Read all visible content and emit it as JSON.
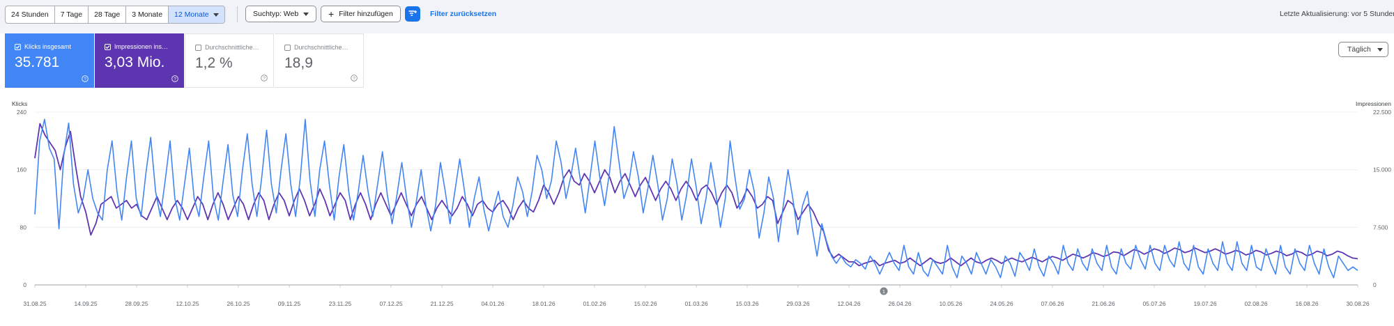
{
  "toolbar": {
    "ranges": [
      "24 Stunden",
      "7 Tage",
      "28 Tage",
      "3 Monate",
      "12 Monate"
    ],
    "active_range_index": 4,
    "search_type": "Suchtyp: Web",
    "add_filter": "Filter hinzufügen",
    "filter_icon": "filter-plus-icon",
    "reset_filters": "Filter zurücksetzen",
    "last_update": "Letzte Aktualisierung: vor 5 Stunden"
  },
  "metrics": [
    {
      "label": "Klicks insgesamt",
      "value": "35.781",
      "checked": true,
      "color": "#4285f4"
    },
    {
      "label": "Impressionen ins…",
      "value": "3,03 Mio.",
      "checked": true,
      "color": "#5e35b1"
    },
    {
      "label": "Durchschnittliche…",
      "value": "1,2 %",
      "checked": false
    },
    {
      "label": "Durchschnittliche…",
      "value": "18,9",
      "checked": false
    }
  ],
  "granularity": "Täglich",
  "annotation_marker": "1",
  "colors": {
    "clicks": "#4285f4",
    "impressions": "#5e35b1",
    "accent": "#1a73e8"
  },
  "chart_data": {
    "type": "line",
    "ylabel_left": "Klicks",
    "ylabel_right": "Impressionen",
    "y_left_ticks": [
      "0",
      "80",
      "160",
      "240"
    ],
    "y_right_ticks": [
      "0",
      "7.500",
      "15.000",
      "22.500"
    ],
    "ylim_left": [
      0,
      240
    ],
    "ylim_right": [
      0,
      22500
    ],
    "x_tick_labels": [
      "31.08.25",
      "14.09.25",
      "28.09.25",
      "12.10.25",
      "26.10.25",
      "09.11.25",
      "23.11.25",
      "07.12.25",
      "21.12.25",
      "04.01.26",
      "18.01.26",
      "01.02.26",
      "15.02.26",
      "01.03.26",
      "15.03.26",
      "29.03.26",
      "12.04.26",
      "26.04.26",
      "10.05.26",
      "24.05.26",
      "07.06.26",
      "21.06.26",
      "05.07.26",
      "19.07.26",
      "02.08.26",
      "16.08.26",
      "30.08.26"
    ],
    "series": [
      {
        "name": "Klicks",
        "axis": "left",
        "values": [
          98,
          200,
          230,
          190,
          175,
          78,
          180,
          225,
          140,
          100,
          120,
          160,
          120,
          100,
          90,
          160,
          200,
          130,
          90,
          150,
          200,
          120,
          95,
          155,
          205,
          130,
          95,
          145,
          200,
          120,
          90,
          140,
          190,
          120,
          95,
          150,
          200,
          120,
          90,
          145,
          195,
          125,
          95,
          160,
          210,
          140,
          95,
          150,
          215,
          140,
          100,
          160,
          210,
          140,
          95,
          150,
          230,
          145,
          95,
          160,
          200,
          140,
          90,
          150,
          195,
          130,
          90,
          130,
          180,
          130,
          95,
          140,
          185,
          125,
          85,
          125,
          170,
          120,
          80,
          115,
          160,
          110,
          75,
          110,
          170,
          130,
          85,
          130,
          175,
          130,
          80,
          120,
          150,
          105,
          75,
          105,
          130,
          95,
          80,
          110,
          150,
          130,
          95,
          130,
          180,
          160,
          120,
          145,
          200,
          170,
          120,
          150,
          190,
          145,
          100,
          150,
          200,
          150,
          110,
          155,
          220,
          170,
          120,
          140,
          185,
          150,
          100,
          135,
          180,
          140,
          90,
          120,
          175,
          140,
          90,
          125,
          175,
          135,
          85,
          120,
          170,
          130,
          80,
          120,
          200,
          150,
          105,
          120,
          160,
          130,
          65,
          100,
          150,
          120,
          60,
          110,
          160,
          120,
          70,
          110,
          130,
          80,
          40,
          85,
          60,
          40,
          30,
          40,
          30,
          25,
          35,
          30,
          22,
          40,
          30,
          15,
          30,
          45,
          30,
          20,
          55,
          25,
          15,
          45,
          20,
          12,
          35,
          25,
          15,
          55,
          25,
          10,
          40,
          30,
          15,
          45,
          30,
          15,
          35,
          25,
          10,
          40,
          30,
          12,
          45,
          35,
          20,
          50,
          25,
          12,
          40,
          30,
          15,
          55,
          30,
          20,
          50,
          30,
          20,
          50,
          30,
          20,
          55,
          25,
          15,
          50,
          30,
          22,
          55,
          35,
          22,
          55,
          30,
          20,
          55,
          35,
          25,
          60,
          30,
          20,
          55,
          25,
          15,
          50,
          30,
          20,
          60,
          30,
          20,
          60,
          30,
          20,
          55,
          25,
          20,
          50,
          30,
          15,
          55,
          25,
          15,
          50,
          30,
          20,
          55,
          30,
          15,
          50,
          25,
          10,
          40,
          30,
          20,
          25,
          20
        ]
      },
      {
        "name": "Impressionen",
        "axis": "right",
        "values": [
          16500,
          21000,
          19500,
          18500,
          17500,
          15000,
          18000,
          20000,
          15500,
          11500,
          9500,
          6500,
          8000,
          10500,
          11000,
          11500,
          10000,
          10500,
          11000,
          10000,
          10500,
          9000,
          8500,
          10000,
          11500,
          10000,
          8500,
          10000,
          11000,
          10000,
          8500,
          10000,
          11500,
          10500,
          8500,
          10500,
          12000,
          10500,
          8500,
          10000,
          11500,
          10500,
          8500,
          10500,
          12000,
          11000,
          8500,
          10500,
          12000,
          11000,
          9000,
          11000,
          12500,
          11000,
          9000,
          10500,
          12500,
          11000,
          9000,
          10500,
          12000,
          11000,
          8500,
          10500,
          12000,
          10500,
          8500,
          10500,
          12000,
          10500,
          9000,
          10500,
          12000,
          10500,
          9000,
          10500,
          11500,
          10000,
          8500,
          10000,
          11000,
          10000,
          9000,
          10000,
          11500,
          10500,
          9000,
          10500,
          11000,
          10000,
          9500,
          10500,
          11000,
          10000,
          8500,
          10000,
          11000,
          10000,
          9500,
          11000,
          13000,
          12000,
          10500,
          12000,
          14000,
          15000,
          13500,
          13000,
          14500,
          13500,
          12000,
          13500,
          15000,
          14000,
          12000,
          13500,
          14500,
          13000,
          11500,
          13000,
          14000,
          12500,
          11000,
          12500,
          13500,
          12500,
          11000,
          12500,
          13500,
          12500,
          11000,
          12500,
          13000,
          12000,
          10500,
          12000,
          13000,
          12000,
          10000,
          11000,
          12500,
          11500,
          10000,
          10500,
          11500,
          11000,
          8000,
          9500,
          11000,
          10500,
          8500,
          9500,
          10500,
          9500,
          8000,
          7000,
          4500,
          3500,
          4000,
          3500,
          3000,
          3000,
          2500,
          2800,
          3000,
          3200,
          2500,
          2800,
          3000,
          3200,
          2800,
          3000,
          3500,
          3000,
          2500,
          3000,
          3500,
          3000,
          2800,
          3000,
          3500,
          3000,
          2500,
          3000,
          3500,
          3000,
          2800,
          3200,
          3500,
          3200,
          2800,
          3200,
          3500,
          3200,
          3000,
          3300,
          3600,
          3300,
          3000,
          3400,
          3700,
          3500,
          3200,
          3600,
          4000,
          3800,
          3500,
          3800,
          4200,
          4000,
          3700,
          3900,
          4300,
          4200,
          3800,
          4200,
          4600,
          4400,
          4000,
          4300,
          4700,
          4500,
          4100,
          4400,
          4800,
          4600,
          4200,
          4400,
          4800,
          4500,
          4200,
          4400,
          4700,
          4400,
          4000,
          4200,
          4500,
          4300,
          3900,
          4100,
          4500,
          4300,
          3900,
          4100,
          4400,
          4200,
          3800,
          4000,
          4400,
          4200,
          3800,
          4000,
          4400,
          4200,
          3800,
          4000,
          4400,
          4200,
          3800,
          3500,
          3400
        ]
      }
    ],
    "grid": true,
    "legend": "none"
  }
}
